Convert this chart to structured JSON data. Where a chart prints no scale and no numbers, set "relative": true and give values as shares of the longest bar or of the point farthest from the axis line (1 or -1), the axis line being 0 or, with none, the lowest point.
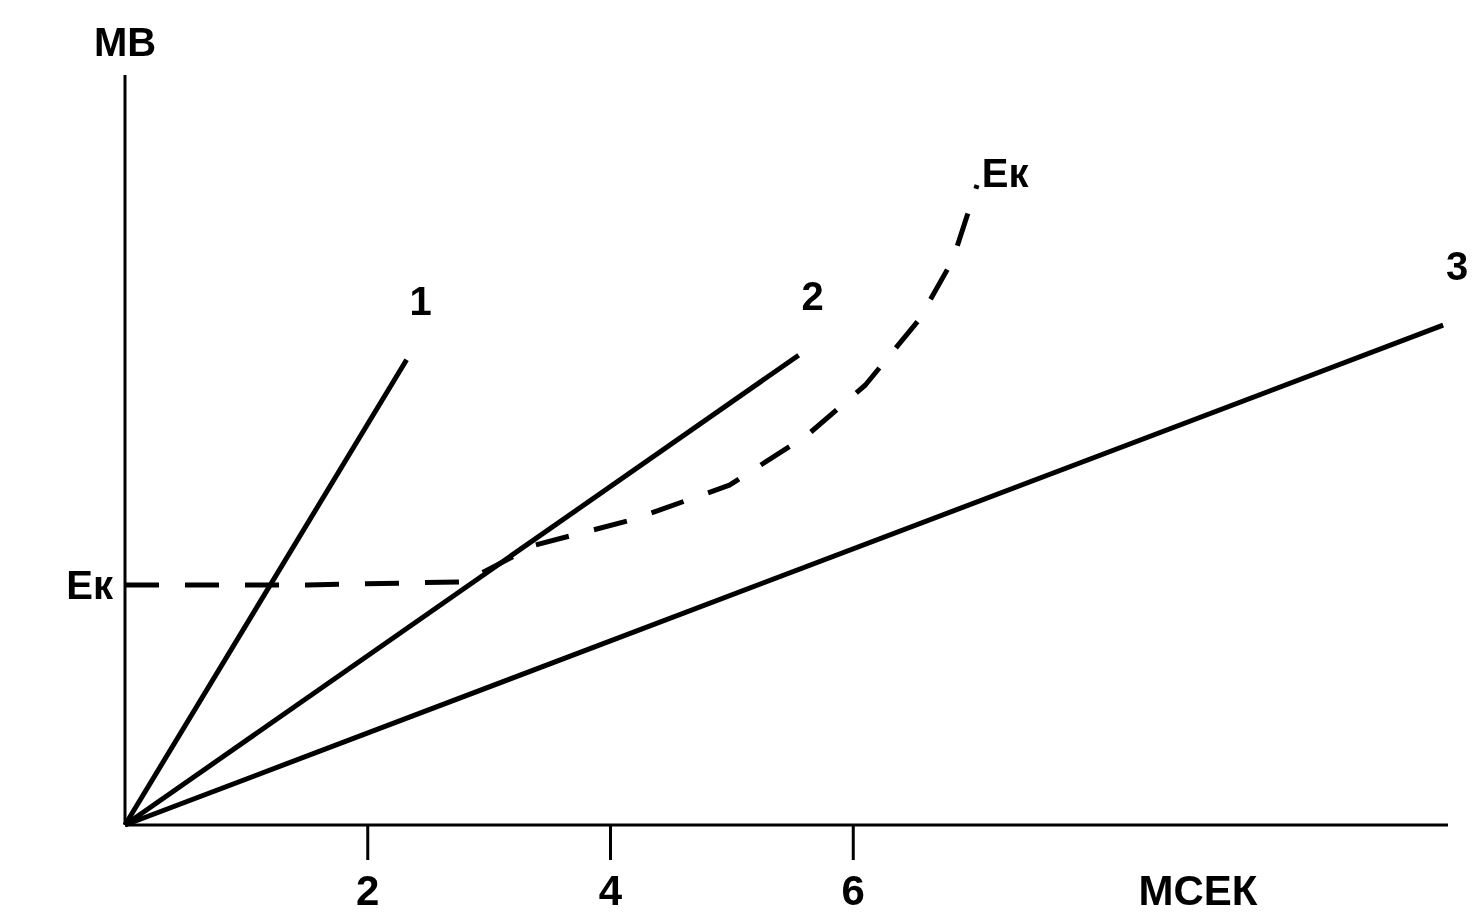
{
  "chart_data": {
    "type": "line",
    "xlabel": "МСЕК",
    "ylabel": "МВ",
    "relative": true,
    "xlim": [
      0,
      10.9
    ],
    "xticks": [
      2,
      4,
      6
    ],
    "series": [
      {
        "name": "1",
        "color": "#000000",
        "x": [
          0,
          2.32
        ],
        "values": [
          0,
          0.727
        ],
        "line_style": "solid"
      },
      {
        "name": "2",
        "color": "#000000",
        "x": [
          0,
          5.55
        ],
        "values": [
          0,
          0.734
        ],
        "line_style": "solid"
      },
      {
        "name": "3",
        "color": "#000000",
        "x": [
          0,
          10.86
        ],
        "values": [
          0,
          0.781
        ],
        "line_style": "solid"
      },
      {
        "name": "Ек",
        "color": "#000000",
        "x": [
          0,
          1.5,
          2.8,
          3.38,
          4.18,
          4.98,
          5.62,
          6.1,
          6.54,
          6.82,
          7.02
        ],
        "values": [
          0.375,
          0.375,
          0.38,
          0.4375,
          0.477,
          0.531,
          0.609,
          0.6875,
          0.789,
          0.883,
          1.0
        ],
        "line_style": "dashed"
      }
    ],
    "annotations": [
      {
        "text": "Ек",
        "x": 0,
        "y": 0.375
      }
    ]
  }
}
